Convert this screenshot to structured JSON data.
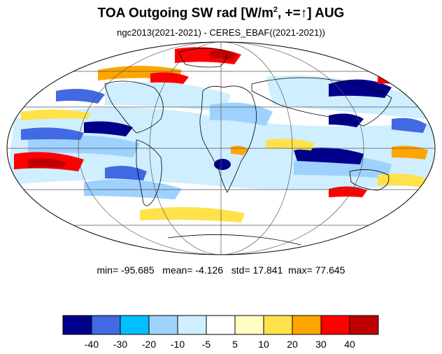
{
  "title": {
    "main": "TOA Outgoing SW rad [W/m",
    "superscript": "2",
    "suffix": ", +=↑] AUG"
  },
  "subtitle": "ngc2013(2021-2021) - CERES_EBAF((2021-2021))",
  "stats": {
    "min_label": "min=",
    "min": "-95.685",
    "mean_label": "mean=",
    "mean": "-4.126",
    "std_label": "std=",
    "std": "17.841",
    "max_label": "max=",
    "max": "77.645"
  },
  "projection": "mollweide",
  "colorbar": {
    "colors": [
      "#00008b",
      "#4169e1",
      "#00bfff",
      "#9fd1ff",
      "#cfeeff",
      "#ffffff",
      "#ffffc4",
      "#ffe14a",
      "#ffa500",
      "#ff0000",
      "#c00000"
    ],
    "tick_labels": [
      "-40",
      "-30",
      "-20",
      "-10",
      "-5",
      "5",
      "10",
      "20",
      "30",
      "40"
    ]
  }
}
